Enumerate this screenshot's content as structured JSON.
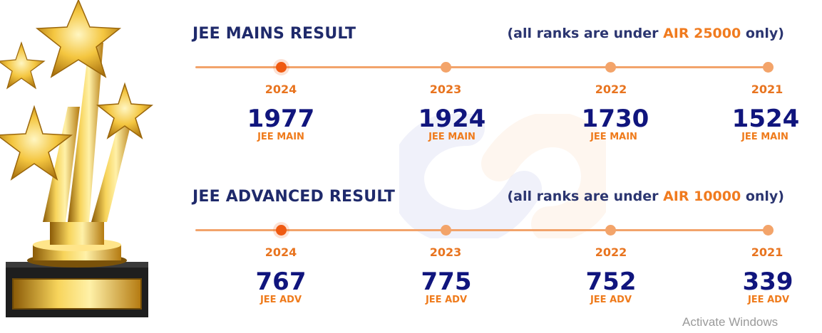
{
  "mains": {
    "title": "JEE MAINS RESULT",
    "note_prefix": "(all ranks are under ",
    "note_highlight": "AIR 25000",
    "note_suffix": " only)",
    "items": [
      {
        "year": "2024",
        "value": "1977",
        "label": "JEE MAIN"
      },
      {
        "year": "2023",
        "value": "1924",
        "label": "JEE MAIN"
      },
      {
        "year": "2022",
        "value": "1730",
        "label": "JEE MAIN"
      },
      {
        "year": "2021",
        "value": "1524",
        "label": "JEE MAIN"
      }
    ]
  },
  "advanced": {
    "title": "JEE ADVANCED RESULT",
    "note_prefix": "(all ranks are under ",
    "note_highlight": "AIR 10000",
    "note_suffix": " only)",
    "items": [
      {
        "year": "2024",
        "value": "767",
        "label": "JEE ADV"
      },
      {
        "year": "2023",
        "value": "775",
        "label": "JEE ADV"
      },
      {
        "year": "2022",
        "value": "752",
        "label": "JEE ADV"
      },
      {
        "year": "2021",
        "value": "339",
        "label": "JEE ADV"
      }
    ]
  },
  "overlay": {
    "activate_windows": "Activate Windows"
  },
  "colors": {
    "navy": "#10157d",
    "orange": "#ef7b1c",
    "timeline": "#f2a36b",
    "active_dot": "#ef5a11"
  },
  "icons": [
    "trophy-stars-illustration",
    "infinity-logo-watermark"
  ]
}
